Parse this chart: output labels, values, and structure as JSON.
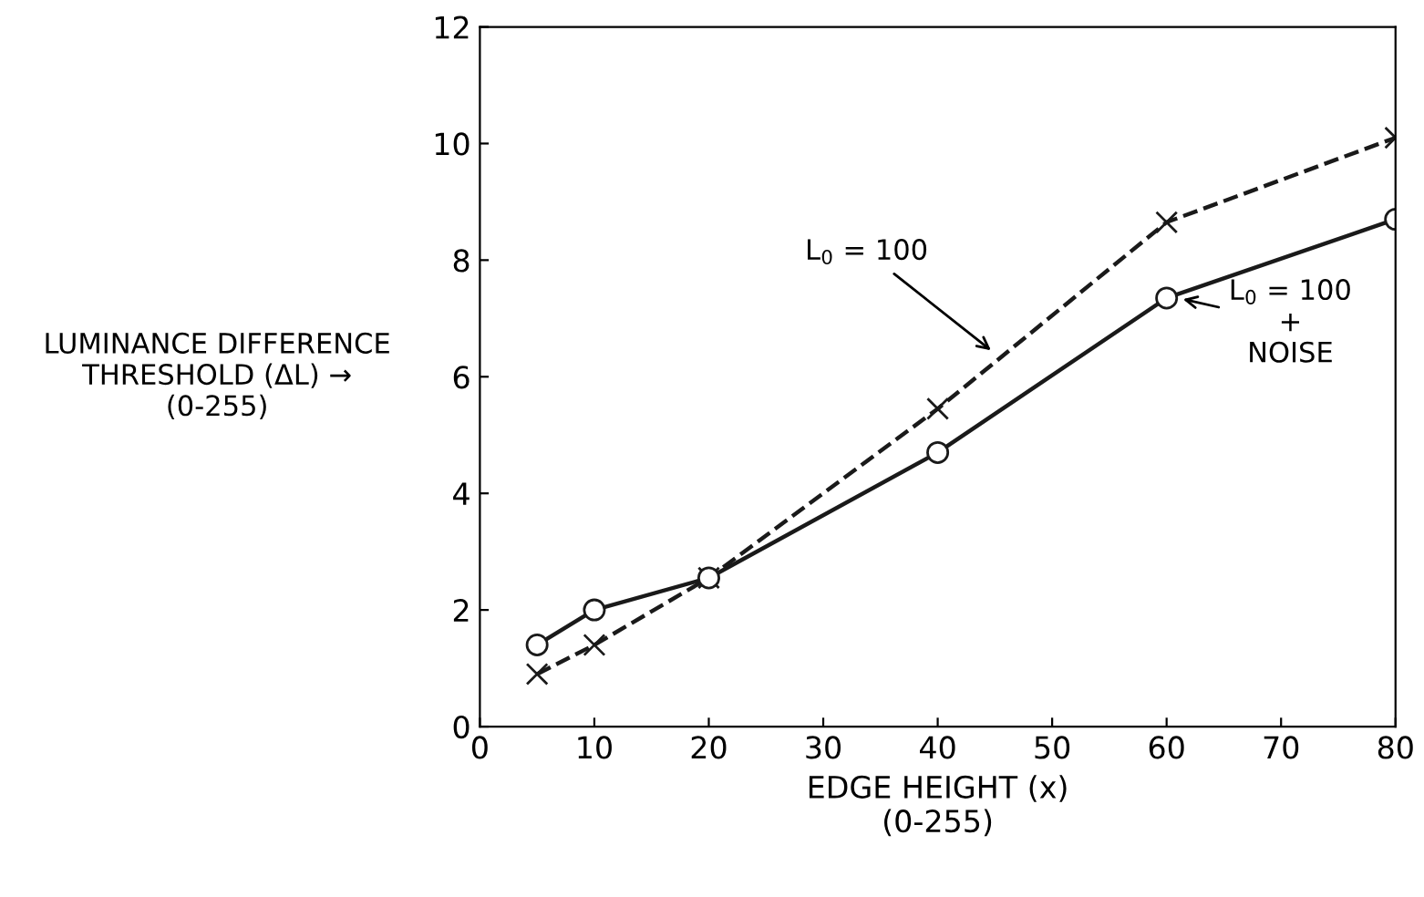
{
  "chart_data": {
    "type": "line",
    "xlabel": "EDGE HEIGHT (x)\n(0-255)",
    "ylabel": "LUMINANCE DIFFERENCE\nTHRESHOLD (ΔL) →\n(0-255)",
    "x": [
      5,
      10,
      20,
      40,
      60,
      80
    ],
    "series": [
      {
        "color": "#1a1a1a",
        "marker": "cross",
        "line_style": "dashed",
        "values": [
          0.9,
          1.4,
          2.55,
          5.45,
          8.65,
          10.1
        ]
      },
      {
        "color": "#1a1a1a",
        "marker": "circle",
        "line_style": "solid",
        "values": [
          1.4,
          2.0,
          2.55,
          4.7,
          7.35,
          8.7
        ]
      }
    ],
    "annotations": [
      {
        "text": "L$_{0}$ = 100",
        "x": 45,
        "y": 6.4
      },
      {
        "text": "L$_{0}$ = 100\n+\nNOISE",
        "x": 61,
        "y": 7.35
      }
    ],
    "xlim": [
      0,
      80
    ],
    "ylim": [
      0,
      12
    ],
    "xticks": [
      0,
      10,
      20,
      30,
      40,
      50,
      60,
      70,
      80
    ],
    "yticks": [
      0,
      2,
      4,
      6,
      8,
      10,
      12
    ],
    "grid": false,
    "legend": false
  }
}
